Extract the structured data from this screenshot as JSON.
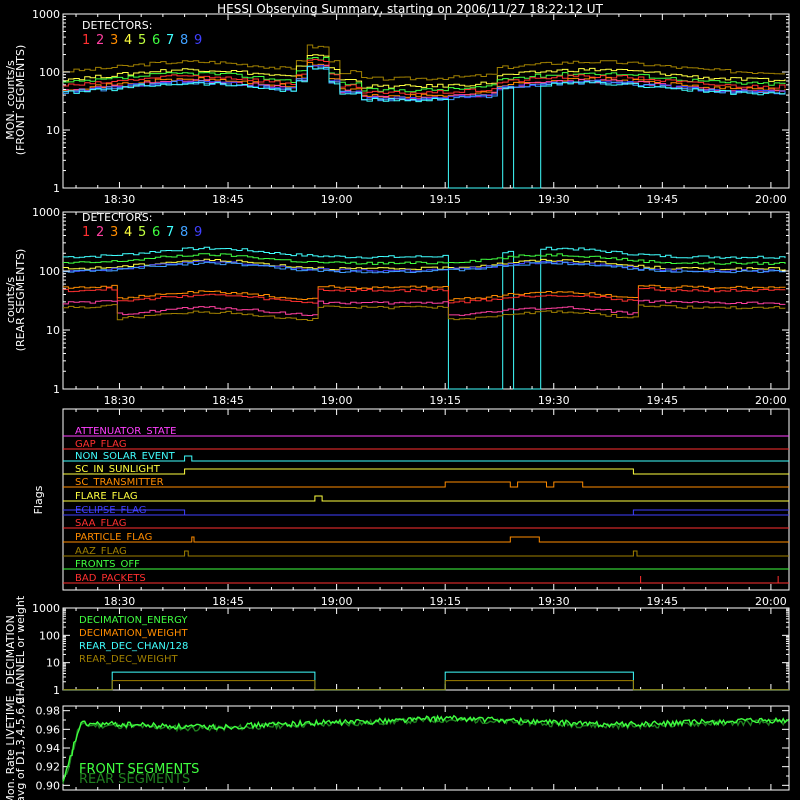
{
  "title": "HESSI Observing Summary, starting on 2006/11/27 18:22:12 UT",
  "time_labels": [
    "18:30",
    "18:45",
    "19:00",
    "19:15",
    "19:30",
    "19:45",
    "20:00"
  ],
  "detector_colors": [
    "#ff3030",
    "#ff40a0",
    "#ff8c00",
    "#ffff40",
    "#c0ff40",
    "#40ff40",
    "#40ffff",
    "#40a0ff",
    "#4040ff"
  ],
  "chart_data": [
    {
      "type": "line",
      "panel": "front",
      "ylabel": "MON. counts/s",
      "ylabel2": "(FRONT SEGMENTS)",
      "yscale": "log",
      "ylim": [
        1,
        1000
      ],
      "ytick_labels": [
        "1",
        "10",
        "100",
        "1000"
      ],
      "xlim": [
        "18:22",
        "20:02"
      ],
      "legend_title": "DETECTORS:",
      "legend_numbers": [
        "1",
        "2",
        "3",
        "4",
        "5",
        "6",
        "7",
        "8",
        "9"
      ],
      "series": [
        {
          "color": "#a08000",
          "base": 150,
          "x": [],
          "y": []
        },
        {
          "color": "#ffff40",
          "base": 110
        },
        {
          "color": "#40ff40",
          "base": 95
        },
        {
          "color": "#ff3030",
          "base": 85
        },
        {
          "color": "#ff8c00",
          "base": 75
        },
        {
          "color": "#ff40a0",
          "base": 70
        },
        {
          "color": "#4040ff",
          "base": 68
        },
        {
          "color": "#40a0ff",
          "base": 66
        },
        {
          "color": "#40ffff",
          "base": 64
        }
      ],
      "peak_times": [
        "18:40",
        "19:35"
      ],
      "spike_time": "18:57"
    },
    {
      "type": "line",
      "panel": "rear",
      "ylabel": "counts/s",
      "ylabel2": "(REAR SEGMENTS)",
      "yscale": "log",
      "ylim": [
        1,
        1000
      ],
      "ytick_labels": [
        "1",
        "10",
        "100",
        "1000"
      ],
      "xlim": [
        "18:22",
        "20:02"
      ],
      "legend_title": "DETECTORS:",
      "legend_numbers": [
        "1",
        "2",
        "3",
        "4",
        "5",
        "6",
        "7",
        "8",
        "9"
      ],
      "series": [
        {
          "color": "#40ffff",
          "base": 230
        },
        {
          "color": "#40ff40",
          "base": 180
        },
        {
          "color": "#ffff40",
          "base": 145
        },
        {
          "color": "#4040ff",
          "base": 135
        },
        {
          "color": "#40a0ff",
          "base": 130
        },
        {
          "color": "#ff8c00",
          "base": 70
        },
        {
          "color": "#ff3030",
          "base": 62
        },
        {
          "color": "#ff40a0",
          "base": 38
        },
        {
          "color": "#a08000",
          "base": 32
        }
      ]
    },
    {
      "type": "flags",
      "ylabel": "Flags",
      "flags": [
        {
          "label": "ATTENUATOR_STATE",
          "color": "#ff40ff"
        },
        {
          "label": "GAP_FLAG",
          "color": "#ff3030"
        },
        {
          "label": "NON_SOLAR_EVENT",
          "color": "#40ffff"
        },
        {
          "label": "SC_IN_SUNLIGHT",
          "color": "#ffff40"
        },
        {
          "label": "SC_TRANSMITTER",
          "color": "#ff8c00"
        },
        {
          "label": "FLARE_FLAG",
          "color": "#ffff40"
        },
        {
          "label": "ECLIPSE_FLAG",
          "color": "#4040ff"
        },
        {
          "label": "SAA_FLAG",
          "color": "#ff3030"
        },
        {
          "label": "PARTICLE_FLAG",
          "color": "#ff8c00"
        },
        {
          "label": "AAZ_FLAG",
          "color": "#a08000"
        },
        {
          "label": "FRONTS_OFF",
          "color": "#40ff40"
        },
        {
          "label": "BAD_PACKETS",
          "color": "#ff3030"
        }
      ]
    },
    {
      "type": "line",
      "panel": "decimation",
      "ylabel": "DECIMATION",
      "ylabel2": "CHANNEL or weight",
      "yscale": "log",
      "ylim": [
        1,
        1000
      ],
      "ytick_labels": [
        "1",
        "10",
        "100",
        "1000"
      ],
      "legend": [
        {
          "label": "DECIMATION_ENERGY",
          "color": "#40ff40"
        },
        {
          "label": "DECIMATION_WEIGHT",
          "color": "#ff8c00"
        },
        {
          "label": "REAR_DEC_CHAN/128",
          "color": "#40ffff"
        },
        {
          "label": "REAR_DEC_WEIGHT",
          "color": "#a08000"
        }
      ],
      "intervals": [
        [
          "18:29",
          "18:57"
        ],
        [
          "19:15",
          "19:41"
        ]
      ]
    },
    {
      "type": "line",
      "panel": "livetime",
      "ylabel": "Mon. Rate LIVETIME",
      "ylabel2": "avg of D1,3,4,5,6,9",
      "ylim": [
        0.895,
        0.985
      ],
      "ytick_labels": [
        "0.90",
        "0.92",
        "0.94",
        "0.96",
        "0.98"
      ],
      "legend": [
        {
          "label": "FRONT SEGMENTS",
          "color": "#40ff40"
        },
        {
          "label": "REAR SEGMENTS",
          "color": "#208020"
        }
      ]
    }
  ]
}
